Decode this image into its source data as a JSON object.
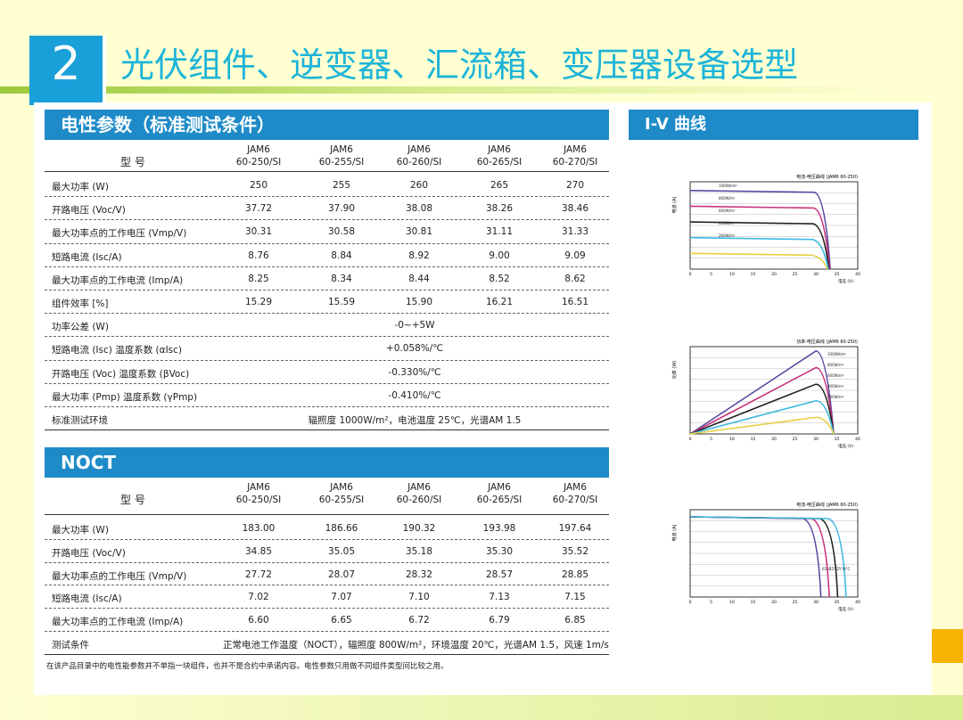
{
  "header": {
    "number": "2",
    "title": "光伏组件、逆变器、汇流箱、变压器设备选型"
  },
  "stc": {
    "heading": "电性参数（标准测试条件）",
    "model_label": "型 号",
    "models": [
      "JAM6\n60-250/SI",
      "JAM6\n60-255/SI",
      "JAM6\n60-260/SI",
      "JAM6\n60-265/SI",
      "JAM6\n60-270/SI"
    ],
    "rows": [
      [
        "最大功率 (W)",
        "250",
        "255",
        "260",
        "265",
        "270"
      ],
      [
        "开路电压 (Voc/V)",
        "37.72",
        "37.90",
        "38.08",
        "38.26",
        "38.46"
      ],
      [
        "最大功率点的工作电压 (Vmp/V)",
        "30.31",
        "30.58",
        "30.81",
        "31.11",
        "31.33"
      ],
      [
        "短路电流 (Isc/A)",
        "8.76",
        "8.84",
        "8.92",
        "9.00",
        "9.09"
      ],
      [
        "最大功率点的工作电流 (Imp/A)",
        "8.25",
        "8.34",
        "8.44",
        "8.52",
        "8.62"
      ],
      [
        "组件效率 [%]",
        "15.29",
        "15.59",
        "15.90",
        "16.21",
        "16.51"
      ],
      [
        "功率公差 (W)",
        "-0~+5W"
      ],
      [
        "短路电流 (Isc) 温度系数 (αIsc)",
        "+0.058%/℃"
      ],
      [
        "开路电压 (Voc) 温度系数 (βVoc)",
        "-0.330%/℃"
      ],
      [
        "最大功率 (Pmp) 温度系数 (γPmp)",
        "-0.410%/℃"
      ],
      [
        "标准测试环境",
        "辐照度 1000W/m²，电池温度 25℃，光谱AM 1.5"
      ]
    ]
  },
  "noct": {
    "heading": "NOCT",
    "model_label": "型 号",
    "models": [
      "JAM6\n60-250/SI",
      "JAM6\n60-255/SI",
      "JAM6\n60-260/SI",
      "JAM6\n60-265/SI",
      "JAM6\n60-270/SI"
    ],
    "rows": [
      [
        "最大功率 (W)",
        "183.00",
        "186.66",
        "190.32",
        "193.98",
        "197.64"
      ],
      [
        "开路电压 (Voc/V)",
        "34.85",
        "35.05",
        "35.18",
        "35.30",
        "35.52"
      ],
      [
        "最大功率点的工作电压 (Vmp/V)",
        "27.72",
        "28.07",
        "28.32",
        "28.57",
        "28.85"
      ],
      [
        "短路电流 (Isc/A)",
        "7.02",
        "7.07",
        "7.10",
        "7.13",
        "7.15"
      ],
      [
        "最大功率点的工作电流 (Imp/A)",
        "6.60",
        "6.65",
        "6.72",
        "6.79",
        "6.85"
      ],
      [
        "测试条件",
        "正常电池工作温度（NOCT），辐照度 800W/m²，环境温度 20℃，光谱AM 1.5，风速 1m/s"
      ]
    ]
  },
  "footnote": "在该产品目录中的电性能参数并不单指一块组件，也并不是合约中承诺内容。电性参数只用做不同组件类型间比较之用。",
  "iv": {
    "heading": "I-V 曲线",
    "x_label": "电压 (V)",
    "x_ticks": [
      "0",
      "5",
      "10",
      "15",
      "20",
      "25",
      "30",
      "35",
      "40"
    ],
    "charts": [
      {
        "title": "电流-电压曲线 (JAM6 60-250)",
        "y_label": "电流 (A)",
        "legend": [
          "1000W/m²",
          "800W/m²",
          "600W/m²",
          "400W/m²",
          "200W/m²"
        ]
      },
      {
        "title": "功率-电压曲线 (JAM6 60-250)",
        "y_label": "功率 (W)",
        "legend": [
          "1000W/m²",
          "800W/m²",
          "600W/m²",
          "400W/m²",
          "200W/m²"
        ]
      },
      {
        "title": "电流-电压曲线 (JAM6 60-250)",
        "y_label": "电流 (A)",
        "legend": [
          "65°C",
          "45°C",
          "25°C",
          "0°C"
        ]
      }
    ]
  }
}
